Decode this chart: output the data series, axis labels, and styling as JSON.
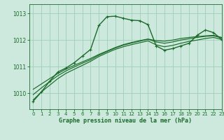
{
  "title": "Graphe pression niveau de la mer (hPa)",
  "bg_color": "#cde8dc",
  "grid_color": "#9ecfb8",
  "line_color": "#1a6b2a",
  "xlim": [
    -0.5,
    23
  ],
  "ylim": [
    1009.4,
    1013.35
  ],
  "yticks": [
    1010,
    1011,
    1012,
    1013
  ],
  "xticks": [
    0,
    1,
    2,
    3,
    4,
    5,
    6,
    7,
    8,
    9,
    10,
    11,
    12,
    13,
    14,
    15,
    16,
    17,
    18,
    19,
    20,
    21,
    22,
    23
  ],
  "series1": [
    1009.7,
    1010.05,
    1010.45,
    1010.8,
    1010.95,
    1011.15,
    1011.4,
    1011.65,
    1012.55,
    1012.88,
    1012.9,
    1012.82,
    1012.75,
    1012.73,
    1012.58,
    1011.78,
    1011.62,
    1011.68,
    1011.78,
    1011.88,
    1012.18,
    1012.38,
    1012.28,
    1012.02
  ],
  "series2": [
    1009.75,
    1010.05,
    1010.3,
    1010.55,
    1010.75,
    1010.9,
    1011.05,
    1011.2,
    1011.38,
    1011.52,
    1011.65,
    1011.75,
    1011.83,
    1011.9,
    1011.97,
    1011.82,
    1011.75,
    1011.8,
    1011.88,
    1011.95,
    1012.0,
    1012.06,
    1012.1,
    1012.02
  ],
  "series3": [
    1009.95,
    1010.2,
    1010.44,
    1010.66,
    1010.84,
    1010.99,
    1011.13,
    1011.26,
    1011.43,
    1011.57,
    1011.7,
    1011.81,
    1011.89,
    1011.96,
    1012.03,
    1011.93,
    1011.88,
    1011.93,
    1012.0,
    1012.05,
    1012.1,
    1012.14,
    1012.16,
    1012.08
  ],
  "series4": [
    1010.15,
    1010.35,
    1010.55,
    1010.74,
    1010.91,
    1011.05,
    1011.18,
    1011.31,
    1011.46,
    1011.59,
    1011.72,
    1011.83,
    1011.91,
    1011.98,
    1012.04,
    1011.98,
    1011.96,
    1012.0,
    1012.06,
    1012.1,
    1012.13,
    1012.16,
    1012.18,
    1012.1
  ]
}
